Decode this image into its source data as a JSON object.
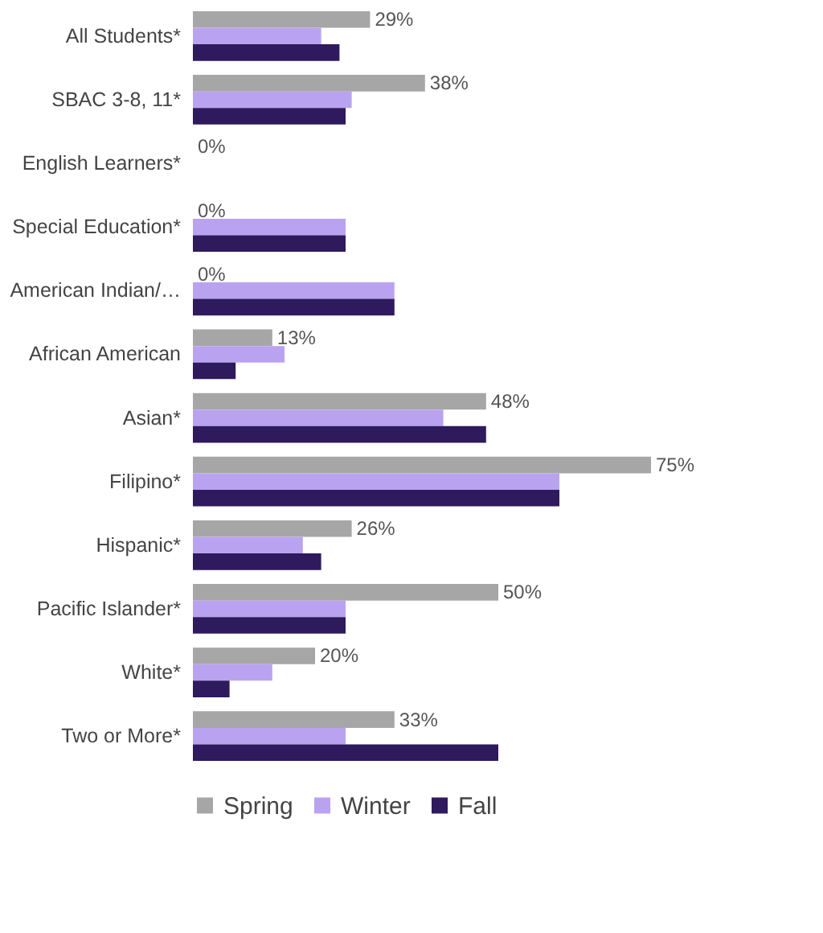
{
  "chart_data": {
    "type": "bar",
    "orientation": "horizontal",
    "categories": [
      "All Students*",
      "SBAC 3-8, 11*",
      "English Learners*",
      "Special Education*",
      "American Indian/…",
      "African American",
      "Asian*",
      "Filipino*",
      "Hispanic*",
      "Pacific Islander*",
      "White*",
      "Two or More*"
    ],
    "series": [
      {
        "name": "Spring",
        "color": "#a6a6a6",
        "values": [
          29,
          38,
          0,
          0,
          0,
          13,
          48,
          75,
          26,
          50,
          20,
          33
        ],
        "value_labels": [
          "29%",
          "38%",
          "0%",
          "0%",
          "0%",
          "13%",
          "48%",
          "75%",
          "26%",
          "50%",
          "20%",
          "33%"
        ]
      },
      {
        "name": "Winter",
        "color": "#b9a3f0",
        "values": [
          21,
          26,
          0,
          25,
          33,
          15,
          41,
          60,
          18,
          25,
          13,
          25
        ]
      },
      {
        "name": "Fall",
        "color": "#2e1a5c",
        "values": [
          24,
          25,
          0,
          25,
          33,
          7,
          48,
          60,
          21,
          25,
          6,
          50
        ]
      }
    ],
    "legend": "bottom",
    "grid": false,
    "tick_labels": "y"
  }
}
